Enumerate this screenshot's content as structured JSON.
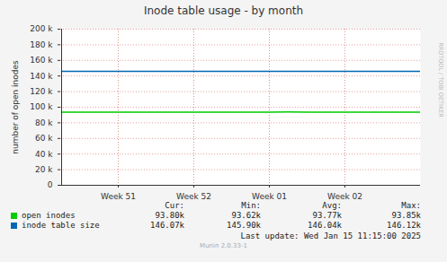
{
  "chart_data": {
    "type": "line",
    "title": "Inode table usage - by month",
    "y_label": "number of open inodes",
    "categories": [
      null,
      null,
      null,
      "Week 51",
      null,
      null,
      null,
      "Week 52",
      null,
      null,
      null,
      "Week 01",
      null,
      null,
      null,
      "Week 02",
      null,
      null,
      null,
      null
    ],
    "series": [
      {
        "name": "open inodes",
        "color": "#00cc00",
        "values": [
          93700,
          93650,
          93620,
          93680,
          93720,
          93750,
          93760,
          93780,
          93770,
          93790,
          93800,
          93820,
          93850,
          93810,
          93790,
          93780,
          93770,
          93790,
          93800,
          93800
        ],
        "stats": [
          "93.80k",
          "93.62k",
          "93.77k",
          "93.85k"
        ]
      },
      {
        "name": "inode table size",
        "color": "#0066b3",
        "values": [
          145900,
          145950,
          145980,
          146000,
          146020,
          146040,
          146050,
          146060,
          146070,
          146060,
          146050,
          146080,
          146100,
          146120,
          146100,
          146090,
          146080,
          146070,
          146070,
          146070
        ],
        "stats": [
          "146.07k",
          "145.90k",
          "146.04k",
          "146.12k"
        ]
      }
    ],
    "stats_headers": [
      "Cur:",
      "Min:",
      "Avg:",
      "Max:"
    ],
    "ylim": [
      0,
      200000
    ],
    "yticks": [
      0,
      {
        "value": 20000,
        "label": "20 k"
      },
      {
        "value": 40000,
        "label": "40 k"
      },
      {
        "value": 60000,
        "label": "60 k"
      },
      {
        "value": 80000,
        "label": "80 k"
      },
      {
        "value": 100000,
        "label": "100 k"
      },
      {
        "value": 120000,
        "label": "120 k"
      },
      {
        "value": 140000,
        "label": "140 k"
      },
      {
        "value": 160000,
        "label": "160 k"
      },
      {
        "value": 180000,
        "label": "180 k"
      },
      {
        "value": 200000,
        "label": "200 k"
      }
    ],
    "grid": true,
    "legend": "bottom",
    "last_update": "Last update: Wed Jan 15 11:15:00 2025",
    "credit": "Munin 2.0.33-1",
    "watermark": "RRDTOOL / TOBI OETIKER"
  }
}
